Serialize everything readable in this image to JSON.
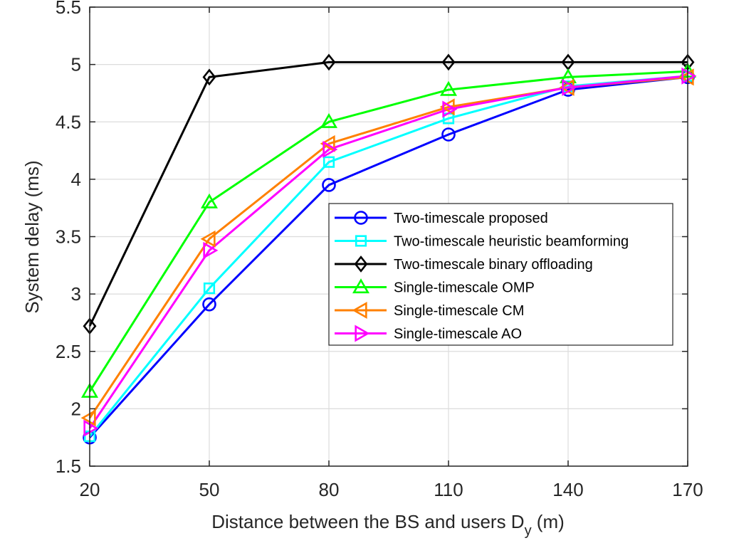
{
  "chart_data": {
    "type": "line",
    "title": "",
    "xlabel": "Distance between the BS and users D",
    "xlabel_subscript": "y",
    "xlabel_unit": " (m)",
    "ylabel": "System delay (ms)",
    "x": [
      20,
      50,
      80,
      110,
      140,
      170
    ],
    "xlim": [
      20,
      170
    ],
    "ylim": [
      1.5,
      5.5
    ],
    "xticks": [
      20,
      50,
      80,
      110,
      140,
      170
    ],
    "yticks": [
      1.5,
      2,
      2.5,
      3,
      3.5,
      4,
      4.5,
      5,
      5.5
    ],
    "grid": true,
    "legend_position": "center-right",
    "series": [
      {
        "name": "Two-timescale proposed",
        "color": "#0000ff",
        "marker": "circle",
        "values": [
          1.75,
          2.91,
          3.95,
          4.39,
          4.78,
          4.89
        ]
      },
      {
        "name": "Two-timescale heuristic beamforming",
        "color": "#00ffff",
        "marker": "square",
        "values": [
          1.76,
          3.05,
          4.15,
          4.53,
          4.81,
          4.9
        ]
      },
      {
        "name": "Two-timescale binary offloading",
        "color": "#000000",
        "marker": "diamond",
        "values": [
          2.72,
          4.89,
          5.02,
          5.02,
          5.02,
          5.02
        ]
      },
      {
        "name": "Single-timescale OMP",
        "color": "#00ff00",
        "marker": "triangle-up",
        "values": [
          2.15,
          3.8,
          4.5,
          4.78,
          4.89,
          4.94
        ]
      },
      {
        "name": "Single-timescale CM",
        "color": "#ff8000",
        "marker": "triangle-left",
        "values": [
          1.92,
          3.48,
          4.31,
          4.63,
          4.8,
          4.89
        ]
      },
      {
        "name": "Single-timescale AO",
        "color": "#ff00ff",
        "marker": "triangle-right",
        "values": [
          1.83,
          3.38,
          4.26,
          4.61,
          4.8,
          4.9
        ]
      }
    ]
  }
}
